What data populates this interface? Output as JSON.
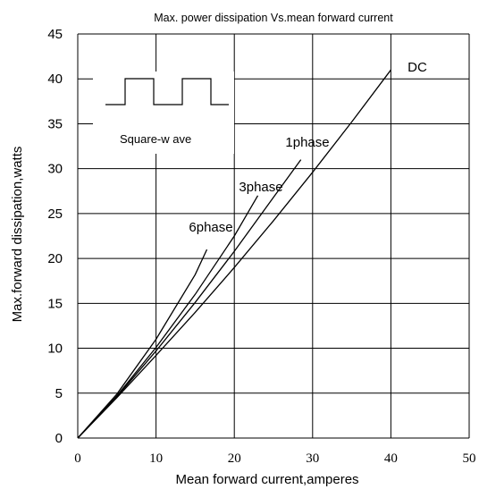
{
  "chart_data": {
    "type": "line",
    "title": "Max. power dissipation  Vs.mean  forward  current",
    "xlabel": "Mean forward  current,amperes",
    "ylabel": "Max.forward dissipation,watts",
    "xlim": [
      0,
      50
    ],
    "ylim": [
      0,
      45
    ],
    "xticks": [
      0,
      10,
      20,
      30,
      40,
      50
    ],
    "yticks": [
      0,
      5,
      10,
      15,
      20,
      25,
      30,
      35,
      40,
      45
    ],
    "grid": true,
    "inset_label": "Square-w ave",
    "series": [
      {
        "name": "DC",
        "x": [
          0,
          5,
          10,
          15,
          20,
          25,
          30,
          35,
          40
        ],
        "y": [
          0,
          4.5,
          9.2,
          14.0,
          19.0,
          24.2,
          29.6,
          35.2,
          41.0
        ]
      },
      {
        "name": "1phase",
        "x": [
          0,
          5,
          10,
          15,
          20,
          25,
          28.5
        ],
        "y": [
          0,
          4.6,
          9.7,
          15.1,
          20.8,
          26.8,
          31.0
        ]
      },
      {
        "name": "3phase",
        "x": [
          0,
          5,
          10,
          15,
          20,
          23
        ],
        "y": [
          0,
          4.7,
          10.1,
          16.0,
          22.5,
          27.0
        ]
      },
      {
        "name": "6phase",
        "x": [
          0,
          5,
          10,
          15,
          16.5
        ],
        "y": [
          0,
          4.9,
          11.0,
          18.2,
          21.0
        ]
      }
    ]
  }
}
